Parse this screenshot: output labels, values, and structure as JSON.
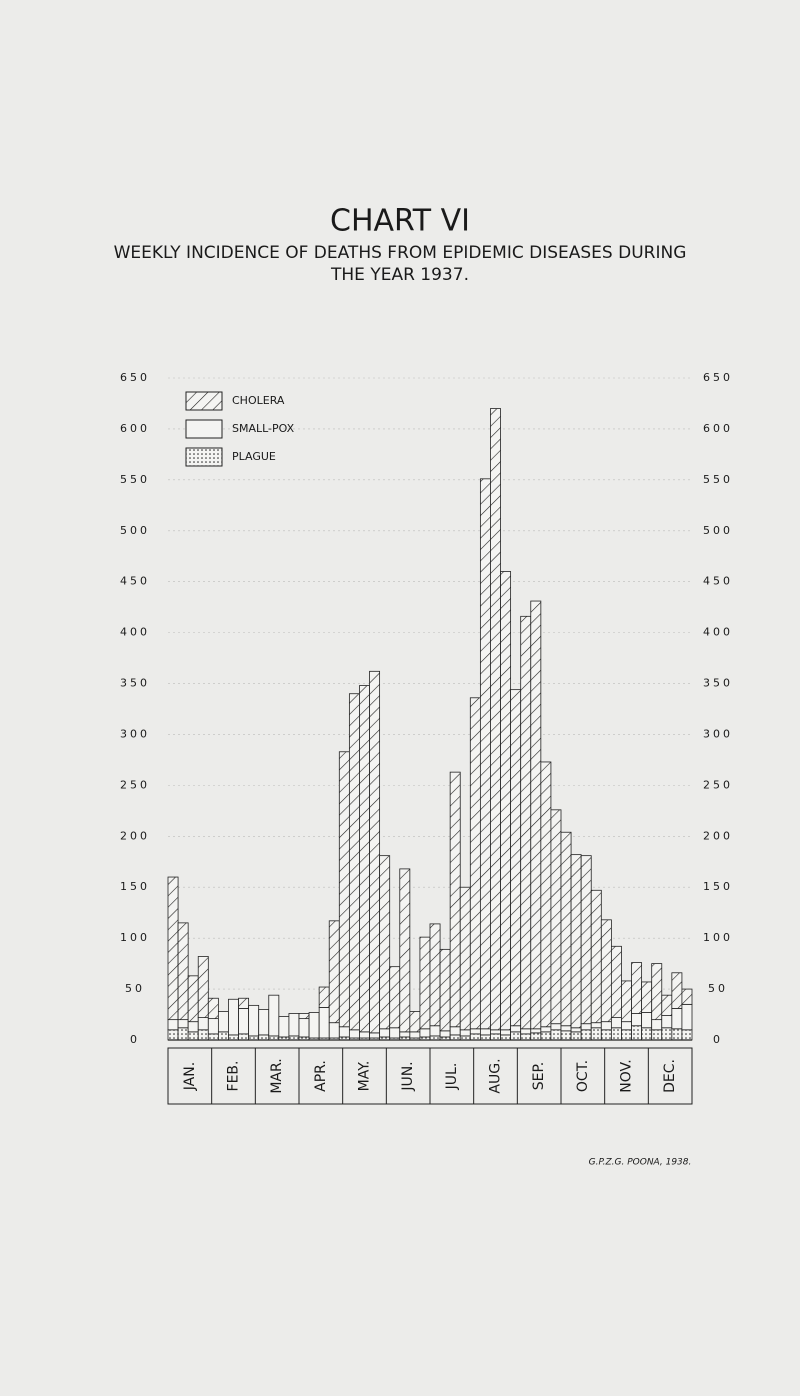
{
  "chart_data": {
    "type": "bar",
    "stacked": true,
    "title": "CHART VI",
    "subtitle": "WEEKLY INCIDENCE OF DEATHS FROM EPIDEMIC DISEASES DURING THE YEAR 1937.",
    "months": [
      "JAN.",
      "FEB.",
      "MAR.",
      "APR.",
      "MAY.",
      "JUN.",
      "JUL.",
      "AUG.",
      "SEP.",
      "OCT.",
      "NOV.",
      "DEC."
    ],
    "series": [
      {
        "name": "PLAGUE",
        "pattern": "dots",
        "values": [
          10,
          12,
          8,
          10,
          6,
          8,
          5,
          6,
          4,
          5,
          4,
          3,
          4,
          3,
          2,
          2,
          2,
          3,
          2,
          2,
          2,
          3,
          2,
          3,
          2,
          3,
          4,
          3,
          5,
          4,
          6,
          5,
          6,
          5,
          8,
          6,
          7,
          8,
          10,
          9,
          8,
          10,
          12,
          10,
          12,
          10,
          14,
          12,
          10,
          12,
          11,
          10
        ]
      },
      {
        "name": "SMALL-POX",
        "pattern": "plain",
        "values": [
          10,
          8,
          10,
          12,
          15,
          20,
          35,
          25,
          30,
          25,
          40,
          20,
          22,
          18,
          25,
          30,
          15,
          10,
          8,
          6,
          5,
          8,
          10,
          5,
          6,
          8,
          10,
          6,
          8,
          6,
          5,
          6,
          4,
          5,
          6,
          5,
          4,
          5,
          6,
          5,
          4,
          6,
          5,
          8,
          10,
          8,
          12,
          15,
          10,
          12,
          20,
          25
        ]
      },
      {
        "name": "CHOLERA",
        "pattern": "hatch",
        "values": [
          140,
          95,
          45,
          60,
          20,
          0,
          0,
          10,
          0,
          0,
          0,
          0,
          0,
          5,
          0,
          20,
          100,
          270,
          330,
          340,
          355,
          170,
          60,
          160,
          20,
          90,
          100,
          80,
          250,
          140,
          325,
          540,
          610,
          450,
          330,
          405,
          420,
          260,
          210,
          190,
          170,
          165,
          130,
          100,
          70,
          40,
          50,
          30,
          55,
          20,
          35,
          15
        ]
      }
    ],
    "ylim": [
      0,
      650
    ],
    "yticks": [
      0,
      50,
      100,
      150,
      200,
      250,
      300,
      350,
      400,
      450,
      500,
      550,
      600,
      650
    ],
    "footer": "G.P.Z.G. POONA, 1938."
  }
}
